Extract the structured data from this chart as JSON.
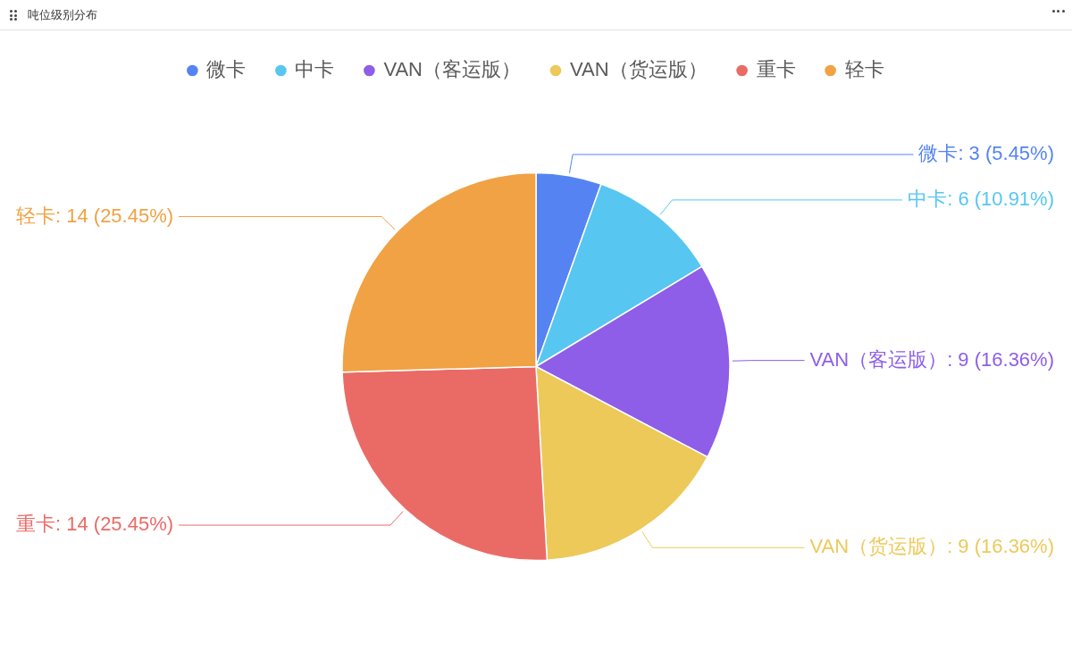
{
  "chart_data": {
    "type": "pie",
    "title": "吨位级别分布",
    "categories": [
      "微卡",
      "中卡",
      "VAN（客运版）",
      "VAN（货运版）",
      "重卡",
      "轻卡"
    ],
    "values": [
      3,
      6,
      9,
      9,
      14,
      14
    ],
    "colors": [
      "#5584f2",
      "#57c6f0",
      "#8e5ee8",
      "#edc95a",
      "#ea6b66",
      "#f0a244"
    ],
    "value_labels": [
      "微卡: 3 (5.45%)",
      "中卡: 6 (10.91%)",
      "VAN（客运版）: 9 (16.36%)",
      "VAN（货运版）: 9 (16.36%)",
      "重卡: 14 (25.45%)",
      "轻卡: 14 (25.45%)"
    ],
    "legend": "top"
  }
}
